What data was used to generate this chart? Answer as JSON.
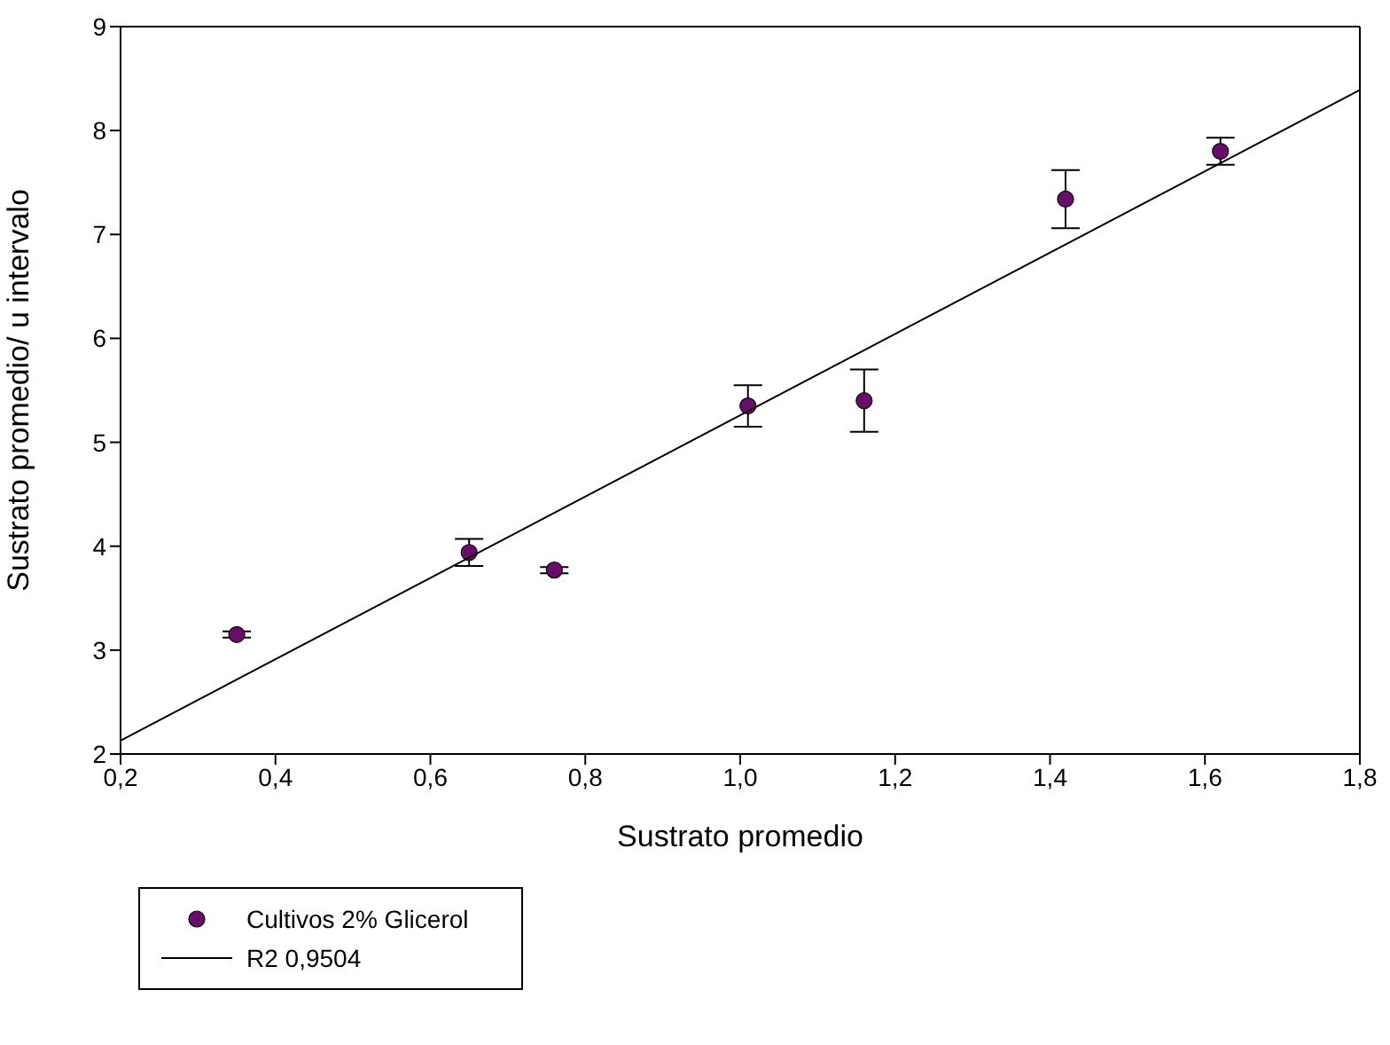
{
  "chart_data": {
    "type": "scatter",
    "xlabel": "Sustrato promedio",
    "ylabel": "Sustrato promedio/ u intervalo",
    "series": [
      {
        "name": "Cultivos 2% Glicerol",
        "color": "#6a0d6a",
        "marker": "circle",
        "x": [
          0.35,
          0.65,
          0.76,
          1.01,
          1.16,
          1.42,
          1.62
        ],
        "values": [
          3.15,
          3.94,
          3.77,
          5.35,
          5.4,
          7.34,
          7.8
        ],
        "errors": [
          0.03,
          0.13,
          0.03,
          0.2,
          0.3,
          0.28,
          0.13
        ]
      },
      {
        "name": "R2 0,9504",
        "type": "line",
        "color": "#000000",
        "marker": "none",
        "x": [
          0.2,
          1.8
        ],
        "values": [
          2.13,
          8.39
        ]
      }
    ],
    "xlim": [
      0.2,
      1.8
    ],
    "xticks": [
      {
        "value": 0.2,
        "label": "0,2"
      },
      {
        "value": 0.4,
        "label": "0,4"
      },
      {
        "value": 0.6,
        "label": "0,6"
      },
      {
        "value": 0.8,
        "label": "0,8"
      },
      {
        "value": 1.0,
        "label": "1,0"
      },
      {
        "value": 1.2,
        "label": "1,2"
      },
      {
        "value": 1.4,
        "label": "1,4"
      },
      {
        "value": 1.6,
        "label": "1,6"
      },
      {
        "value": 1.8,
        "label": "1,8"
      }
    ],
    "ylim": [
      2,
      9
    ],
    "yticks": [
      2,
      3,
      4,
      5,
      6,
      7,
      8,
      9
    ],
    "grid": false,
    "legend": "bottom left"
  }
}
